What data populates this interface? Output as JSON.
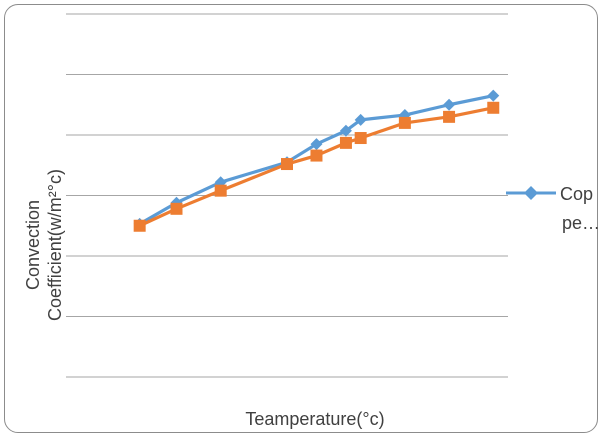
{
  "chart_data": {
    "type": "line",
    "title": "",
    "xlabel": "Teamperature(°c)",
    "ylabel_lines": [
      "Convection",
      "Coefficient(w/m²°c)"
    ],
    "grid": true,
    "ylim": [
      0,
      6
    ],
    "legend_position": "right",
    "series": [
      {
        "name": "Copper",
        "legend_lines": [
          "Cop",
          "pe…"
        ],
        "color": "#5B9BD5",
        "marker": "diamond",
        "points": [
          {
            "x": 30,
            "y": 2.53
          },
          {
            "x": 35,
            "y": 2.88
          },
          {
            "x": 41,
            "y": 3.22
          },
          {
            "x": 50,
            "y": 3.55
          },
          {
            "x": 54,
            "y": 3.85
          },
          {
            "x": 58,
            "y": 4.07
          },
          {
            "x": 60,
            "y": 4.25
          },
          {
            "x": 66,
            "y": 4.33
          },
          {
            "x": 72,
            "y": 4.5
          },
          {
            "x": 78,
            "y": 4.65
          }
        ]
      },
      {
        "name": "",
        "color": "#ED7D31",
        "marker": "square",
        "points": [
          {
            "x": 30,
            "y": 2.5
          },
          {
            "x": 35,
            "y": 2.78
          },
          {
            "x": 41,
            "y": 3.08
          },
          {
            "x": 50,
            "y": 3.52
          },
          {
            "x": 54,
            "y": 3.66
          },
          {
            "x": 58,
            "y": 3.87
          },
          {
            "x": 60,
            "y": 3.95
          },
          {
            "x": 66,
            "y": 4.2
          },
          {
            "x": 72,
            "y": 4.3
          },
          {
            "x": 78,
            "y": 4.45
          }
        ]
      }
    ]
  }
}
